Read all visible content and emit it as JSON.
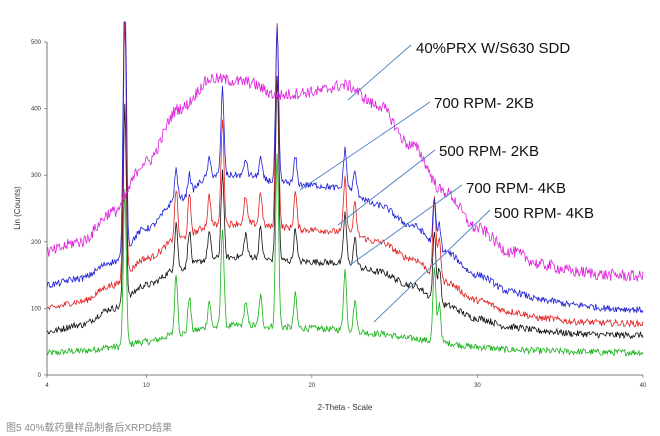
{
  "caption": "图5 40%载药量样品制备后XRPD结果",
  "chart_data": {
    "type": "line",
    "xlabel": "2-Theta - Scale",
    "ylabel": "Lin (Counts)",
    "xlim": [
      4,
      40
    ],
    "ylim": [
      0,
      500
    ],
    "x_ticks": [
      "4",
      "10",
      "20",
      "30",
      "40"
    ],
    "y_ticks": [
      "0",
      "100",
      "200",
      "300",
      "400",
      "500"
    ],
    "grid": false,
    "peaks_2theta": [
      8.7,
      11.8,
      12.6,
      13.8,
      14.6,
      16.0,
      16.9,
      17.9,
      19.0,
      22.0,
      22.6,
      27.4,
      27.7
    ],
    "series": [
      {
        "name": "40%PRX W/S630 SDD",
        "color": "#dd22dd",
        "x": [
          4,
          6,
          8,
          10,
          12,
          14,
          16,
          18,
          20,
          22,
          24,
          26,
          28,
          30,
          32,
          34,
          36,
          38,
          40
        ],
        "y": [
          185,
          200,
          245,
          320,
          400,
          445,
          440,
          420,
          425,
          435,
          405,
          345,
          275,
          220,
          185,
          165,
          155,
          150,
          148
        ],
        "peaks": [
          0,
          0,
          0,
          0,
          0,
          0,
          0,
          0,
          0,
          0,
          0,
          0,
          0
        ]
      },
      {
        "name": "700 RPM- 2KB",
        "color": "#1f1fd6",
        "x": [
          4,
          6,
          8,
          10,
          12,
          14,
          16,
          18,
          20,
          22,
          24,
          26,
          28,
          30,
          32,
          34,
          36,
          38,
          40
        ],
        "y": [
          135,
          145,
          170,
          220,
          265,
          300,
          300,
          290,
          285,
          280,
          255,
          225,
          185,
          150,
          125,
          112,
          105,
          100,
          98
        ],
        "peaks": [
          460,
          45,
          30,
          25,
          130,
          25,
          30,
          230,
          40,
          60,
          30,
          70,
          40
        ]
      },
      {
        "name": "500 RPM- 2KB",
        "color": "#e02020",
        "x": [
          4,
          6,
          8,
          10,
          12,
          14,
          16,
          18,
          20,
          22,
          24,
          26,
          28,
          30,
          32,
          34,
          36,
          38,
          40
        ],
        "y": [
          100,
          110,
          135,
          175,
          205,
          225,
          228,
          222,
          218,
          215,
          200,
          175,
          140,
          112,
          95,
          85,
          80,
          78,
          77
        ],
        "peaks": [
          400,
          75,
          60,
          45,
          160,
          40,
          50,
          310,
          55,
          80,
          45,
          120,
          65
        ]
      },
      {
        "name": "700 RPM- 4KB",
        "color": "#111111",
        "x": [
          4,
          6,
          8,
          10,
          12,
          14,
          16,
          18,
          20,
          22,
          24,
          26,
          28,
          30,
          32,
          34,
          36,
          38,
          40
        ],
        "y": [
          65,
          75,
          100,
          135,
          160,
          175,
          178,
          172,
          170,
          168,
          155,
          135,
          105,
          85,
          72,
          66,
          62,
          60,
          60
        ],
        "peaks": [
          300,
          70,
          55,
          40,
          130,
          35,
          45,
          280,
          50,
          75,
          40,
          105,
          55
        ]
      },
      {
        "name": "500 RPM- 4KB",
        "color": "#18b218",
        "x": [
          4,
          6,
          8,
          10,
          12,
          14,
          16,
          18,
          20,
          22,
          24,
          26,
          28,
          30,
          32,
          34,
          36,
          38,
          40
        ],
        "y": [
          33,
          36,
          42,
          50,
          62,
          72,
          75,
          72,
          70,
          68,
          62,
          55,
          48,
          42,
          38,
          36,
          35,
          34,
          34
        ],
        "peaks": [
          230,
          90,
          55,
          40,
          150,
          35,
          45,
          260,
          50,
          90,
          45,
          110,
          60
        ]
      }
    ],
    "annotations": [
      {
        "text": "40%PRX W/S630 SDD",
        "series": 0
      },
      {
        "text": "700 RPM- 2KB",
        "series": 1
      },
      {
        "text": "500 RPM- 2KB",
        "series": 2
      },
      {
        "text": "700 RPM- 4KB",
        "series": 3
      },
      {
        "text": "500 RPM- 4KB",
        "series": 4
      }
    ]
  }
}
